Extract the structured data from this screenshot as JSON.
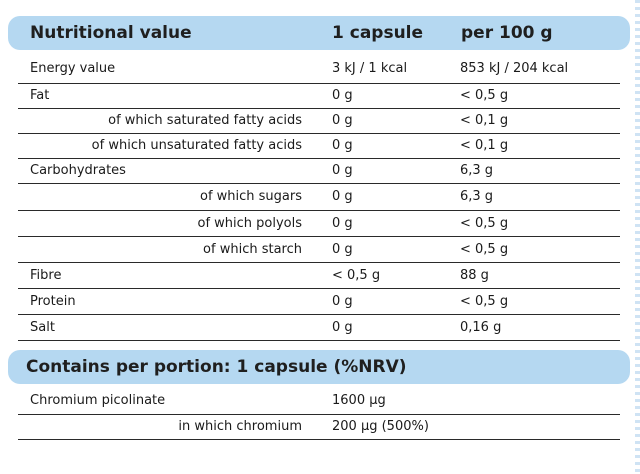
{
  "nutrition": {
    "header": {
      "name": "Nutritional value",
      "per_capsule": "1 capsule",
      "per_100g": "per 100 g"
    },
    "rows": [
      {
        "name": "Energy value",
        "per_capsule": "3 kJ / 1 kcal",
        "per_100g": "853 kJ / 204 kcal"
      },
      {
        "name": "Fat",
        "per_capsule": "0 g",
        "per_100g": "< 0,5 g"
      },
      {
        "name": "of which saturated fatty acids",
        "per_capsule": "0 g",
        "per_100g": "< 0,1 g"
      },
      {
        "name": "of which unsaturated fatty acids",
        "per_capsule": "0 g",
        "per_100g": "< 0,1 g"
      },
      {
        "name": "Carbohydrates",
        "per_capsule": "0 g",
        "per_100g": "6,3 g"
      },
      {
        "name": "of which sugars",
        "per_capsule": "0 g",
        "per_100g": "6,3 g"
      },
      {
        "name": "of which polyols",
        "per_capsule": "0 g",
        "per_100g": "< 0,5 g"
      },
      {
        "name": "of which starch",
        "per_capsule": "0 g",
        "per_100g": "< 0,5 g"
      },
      {
        "name": "Fibre",
        "per_capsule": "< 0,5 g",
        "per_100g": "88 g"
      },
      {
        "name": "Protein",
        "per_capsule": "0 g",
        "per_100g": "< 0,5 g"
      },
      {
        "name": "Salt",
        "per_capsule": "0 g",
        "per_100g": "0,16 g"
      }
    ]
  },
  "portion": {
    "header": "Contains per portion: 1 capsule (%NRV)",
    "rows": [
      {
        "name": "Chromium picolinate",
        "value": "1600 µg"
      },
      {
        "name": "in which chromium",
        "value": "200 µg (500%)"
      }
    ]
  },
  "colors": {
    "header_bg": "#b5d8f1",
    "rule": "#2a2a2a",
    "text": "#1a1a1a"
  }
}
